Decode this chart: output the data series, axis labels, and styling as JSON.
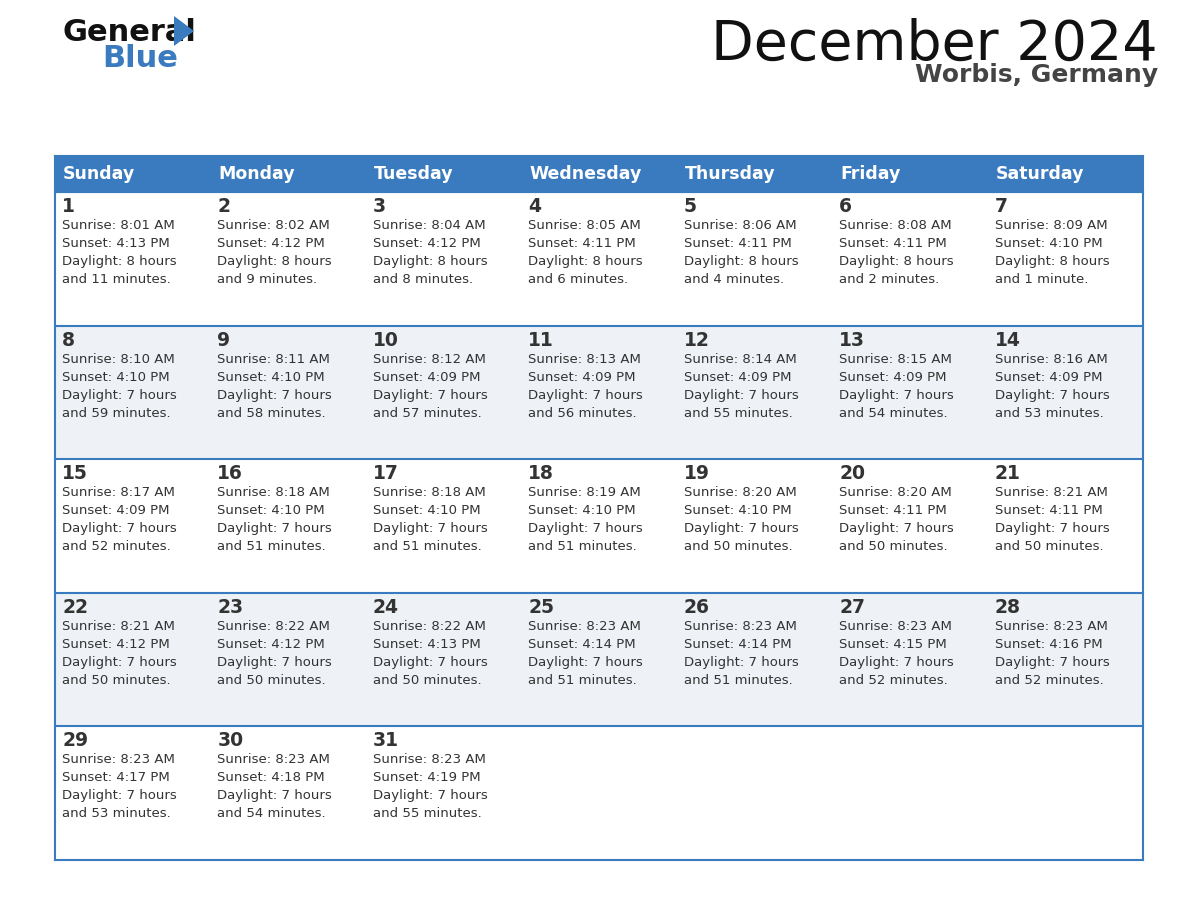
{
  "title": "December 2024",
  "subtitle": "Worbis, Germany",
  "header_color": "#3a7bbf",
  "header_text_color": "#ffffff",
  "row_bg_odd": "#ffffff",
  "row_bg_even": "#eef2f7",
  "border_color": "#3a7bbf",
  "text_color": "#333333",
  "days_of_week": [
    "Sunday",
    "Monday",
    "Tuesday",
    "Wednesday",
    "Thursday",
    "Friday",
    "Saturday"
  ],
  "weeks": [
    [
      {
        "day": "1",
        "sunrise": "8:01 AM",
        "sunset": "4:13 PM",
        "daylight_line1": "Daylight: 8 hours",
        "daylight_line2": "and 11 minutes."
      },
      {
        "day": "2",
        "sunrise": "8:02 AM",
        "sunset": "4:12 PM",
        "daylight_line1": "Daylight: 8 hours",
        "daylight_line2": "and 9 minutes."
      },
      {
        "day": "3",
        "sunrise": "8:04 AM",
        "sunset": "4:12 PM",
        "daylight_line1": "Daylight: 8 hours",
        "daylight_line2": "and 8 minutes."
      },
      {
        "day": "4",
        "sunrise": "8:05 AM",
        "sunset": "4:11 PM",
        "daylight_line1": "Daylight: 8 hours",
        "daylight_line2": "and 6 minutes."
      },
      {
        "day": "5",
        "sunrise": "8:06 AM",
        "sunset": "4:11 PM",
        "daylight_line1": "Daylight: 8 hours",
        "daylight_line2": "and 4 minutes."
      },
      {
        "day": "6",
        "sunrise": "8:08 AM",
        "sunset": "4:11 PM",
        "daylight_line1": "Daylight: 8 hours",
        "daylight_line2": "and 2 minutes."
      },
      {
        "day": "7",
        "sunrise": "8:09 AM",
        "sunset": "4:10 PM",
        "daylight_line1": "Daylight: 8 hours",
        "daylight_line2": "and 1 minute."
      }
    ],
    [
      {
        "day": "8",
        "sunrise": "8:10 AM",
        "sunset": "4:10 PM",
        "daylight_line1": "Daylight: 7 hours",
        "daylight_line2": "and 59 minutes."
      },
      {
        "day": "9",
        "sunrise": "8:11 AM",
        "sunset": "4:10 PM",
        "daylight_line1": "Daylight: 7 hours",
        "daylight_line2": "and 58 minutes."
      },
      {
        "day": "10",
        "sunrise": "8:12 AM",
        "sunset": "4:09 PM",
        "daylight_line1": "Daylight: 7 hours",
        "daylight_line2": "and 57 minutes."
      },
      {
        "day": "11",
        "sunrise": "8:13 AM",
        "sunset": "4:09 PM",
        "daylight_line1": "Daylight: 7 hours",
        "daylight_line2": "and 56 minutes."
      },
      {
        "day": "12",
        "sunrise": "8:14 AM",
        "sunset": "4:09 PM",
        "daylight_line1": "Daylight: 7 hours",
        "daylight_line2": "and 55 minutes."
      },
      {
        "day": "13",
        "sunrise": "8:15 AM",
        "sunset": "4:09 PM",
        "daylight_line1": "Daylight: 7 hours",
        "daylight_line2": "and 54 minutes."
      },
      {
        "day": "14",
        "sunrise": "8:16 AM",
        "sunset": "4:09 PM",
        "daylight_line1": "Daylight: 7 hours",
        "daylight_line2": "and 53 minutes."
      }
    ],
    [
      {
        "day": "15",
        "sunrise": "8:17 AM",
        "sunset": "4:09 PM",
        "daylight_line1": "Daylight: 7 hours",
        "daylight_line2": "and 52 minutes."
      },
      {
        "day": "16",
        "sunrise": "8:18 AM",
        "sunset": "4:10 PM",
        "daylight_line1": "Daylight: 7 hours",
        "daylight_line2": "and 51 minutes."
      },
      {
        "day": "17",
        "sunrise": "8:18 AM",
        "sunset": "4:10 PM",
        "daylight_line1": "Daylight: 7 hours",
        "daylight_line2": "and 51 minutes."
      },
      {
        "day": "18",
        "sunrise": "8:19 AM",
        "sunset": "4:10 PM",
        "daylight_line1": "Daylight: 7 hours",
        "daylight_line2": "and 51 minutes."
      },
      {
        "day": "19",
        "sunrise": "8:20 AM",
        "sunset": "4:10 PM",
        "daylight_line1": "Daylight: 7 hours",
        "daylight_line2": "and 50 minutes."
      },
      {
        "day": "20",
        "sunrise": "8:20 AM",
        "sunset": "4:11 PM",
        "daylight_line1": "Daylight: 7 hours",
        "daylight_line2": "and 50 minutes."
      },
      {
        "day": "21",
        "sunrise": "8:21 AM",
        "sunset": "4:11 PM",
        "daylight_line1": "Daylight: 7 hours",
        "daylight_line2": "and 50 minutes."
      }
    ],
    [
      {
        "day": "22",
        "sunrise": "8:21 AM",
        "sunset": "4:12 PM",
        "daylight_line1": "Daylight: 7 hours",
        "daylight_line2": "and 50 minutes."
      },
      {
        "day": "23",
        "sunrise": "8:22 AM",
        "sunset": "4:12 PM",
        "daylight_line1": "Daylight: 7 hours",
        "daylight_line2": "and 50 minutes."
      },
      {
        "day": "24",
        "sunrise": "8:22 AM",
        "sunset": "4:13 PM",
        "daylight_line1": "Daylight: 7 hours",
        "daylight_line2": "and 50 minutes."
      },
      {
        "day": "25",
        "sunrise": "8:23 AM",
        "sunset": "4:14 PM",
        "daylight_line1": "Daylight: 7 hours",
        "daylight_line2": "and 51 minutes."
      },
      {
        "day": "26",
        "sunrise": "8:23 AM",
        "sunset": "4:14 PM",
        "daylight_line1": "Daylight: 7 hours",
        "daylight_line2": "and 51 minutes."
      },
      {
        "day": "27",
        "sunrise": "8:23 AM",
        "sunset": "4:15 PM",
        "daylight_line1": "Daylight: 7 hours",
        "daylight_line2": "and 52 minutes."
      },
      {
        "day": "28",
        "sunrise": "8:23 AM",
        "sunset": "4:16 PM",
        "daylight_line1": "Daylight: 7 hours",
        "daylight_line2": "and 52 minutes."
      }
    ],
    [
      {
        "day": "29",
        "sunrise": "8:23 AM",
        "sunset": "4:17 PM",
        "daylight_line1": "Daylight: 7 hours",
        "daylight_line2": "and 53 minutes."
      },
      {
        "day": "30",
        "sunrise": "8:23 AM",
        "sunset": "4:18 PM",
        "daylight_line1": "Daylight: 7 hours",
        "daylight_line2": "and 54 minutes."
      },
      {
        "day": "31",
        "sunrise": "8:23 AM",
        "sunset": "4:19 PM",
        "daylight_line1": "Daylight: 7 hours",
        "daylight_line2": "and 55 minutes."
      },
      null,
      null,
      null,
      null
    ]
  ]
}
